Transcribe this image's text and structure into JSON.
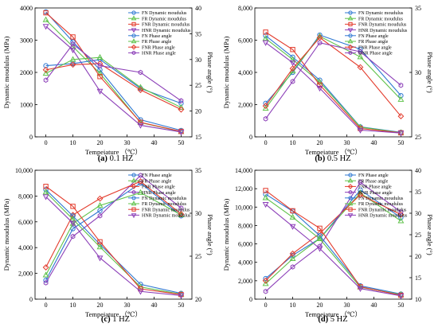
{
  "chart_data": [
    {
      "type": "line",
      "caption_letter": "(a)",
      "caption_text": " 0.1 HZ",
      "xlabel": "Tempeiature （℃）",
      "ylabel_left": "Dynamic moudulus (MPa)",
      "ylabel_right": "Phase angle (°)",
      "x": [
        0,
        10,
        20,
        35,
        50
      ],
      "x_ticks": [
        0,
        10,
        20,
        30,
        40,
        50
      ],
      "xlim": [
        -4,
        54
      ],
      "ylim_left": [
        0,
        4000
      ],
      "yticks_left": [
        0,
        1000,
        2000,
        3000,
        4000
      ],
      "yticks_left_labels": [
        "0",
        "1000",
        "2000",
        "3000",
        "4000"
      ],
      "ylim_right": [
        15,
        40
      ],
      "yticks_right": [
        15,
        20,
        25,
        30,
        35,
        40
      ],
      "legend": [
        "FN Dynamic moudulus",
        "FR Dynamic moudulus",
        "FNR Dynamic moudulus",
        "HNR Dynamic moudulus",
        "FN Phase angle",
        "FR Phase angle",
        "FNR Phase angle",
        "HNR Phase angle"
      ],
      "series": [
        {
          "name": "FN Dynamic moudulus",
          "axis": "left",
          "color": "#2f78d2",
          "marker": "circle",
          "values": [
            3880,
            2950,
            2080,
            530,
            200
          ]
        },
        {
          "name": "FR Dynamic moudulus",
          "axis": "left",
          "color": "#5fc24a",
          "marker": "triangle",
          "values": [
            3630,
            2800,
            1970,
            440,
            160
          ]
        },
        {
          "name": "FNR Dynamic moudulus",
          "axis": "left",
          "color": "#e33b2c",
          "marker": "square",
          "values": [
            3850,
            3100,
            1870,
            450,
            170
          ]
        },
        {
          "name": "HNR Dynamic moudulus",
          "axis": "left",
          "color": "#8c3fb8",
          "marker": "triangle-down",
          "values": [
            3430,
            2700,
            1420,
            360,
            150
          ]
        },
        {
          "name": "FN Phase angle",
          "axis": "right",
          "color": "#2f78d2",
          "marker": "circle",
          "values": [
            28.8,
            29.2,
            30.0,
            24.4,
            21.5
          ]
        },
        {
          "name": "FR Phase angle",
          "axis": "right",
          "color": "#5fc24a",
          "marker": "triangle",
          "values": [
            27.3,
            30.0,
            30.4,
            24.6,
            20.7
          ]
        },
        {
          "name": "FNR Phase angle",
          "axis": "right",
          "color": "#e33b2c",
          "marker": "diamond",
          "values": [
            28.0,
            29.0,
            29.2,
            24.1,
            20.3
          ]
        },
        {
          "name": "HNR Phase angle",
          "axis": "right",
          "color": "#8c3fb8",
          "marker": "hexagon",
          "values": [
            26.0,
            33.0,
            28.8,
            27.5,
            22.0
          ]
        }
      ]
    },
    {
      "type": "line",
      "caption_letter": "(b)",
      "caption_text": " 0.5 HZ",
      "xlabel": "Tempeiature （℃）",
      "ylabel_left": "Dynamic moudulus (MPa)",
      "ylabel_right": "Phase angle (°)",
      "x": [
        0,
        10,
        20,
        35,
        50
      ],
      "x_ticks": [
        0,
        10,
        20,
        30,
        40,
        50
      ],
      "xlim": [
        -4,
        54
      ],
      "ylim_left": [
        0,
        8000
      ],
      "yticks_left": [
        0,
        2000,
        4000,
        6000,
        8000
      ],
      "yticks_left_labels": [
        "0",
        "2,000",
        "4,000",
        "6,000",
        "8,000"
      ],
      "ylim_right": [
        25,
        35
      ],
      "yticks_right": [
        25,
        30,
        35
      ],
      "legend": [
        "FN Dynamic moudulus",
        "FR Dynamic moudulus",
        "FNR Dynamic moudulus",
        "HNR Dynamic moudulus",
        "FN Phase angle",
        "FR Phase angle",
        "FNR Phase angle",
        "HNR Phase angle"
      ],
      "series": [
        {
          "name": "FN Dynamic moudulus",
          "axis": "left",
          "color": "#2f78d2",
          "marker": "circle",
          "values": [
            6280,
            4950,
            3520,
            620,
            280
          ]
        },
        {
          "name": "FR Dynamic moudulus",
          "axis": "left",
          "color": "#5fc24a",
          "marker": "triangle",
          "values": [
            6100,
            4800,
            3400,
            600,
            260
          ]
        },
        {
          "name": "FNR Dynamic moudulus",
          "axis": "left",
          "color": "#e33b2c",
          "marker": "square",
          "values": [
            6500,
            5420,
            3220,
            520,
            250
          ]
        },
        {
          "name": "HNR Dynamic moudulus",
          "axis": "left",
          "color": "#8c3fb8",
          "marker": "triangle-down",
          "values": [
            5850,
            4600,
            3020,
            420,
            240
          ]
        },
        {
          "name": "FN Phase angle",
          "axis": "right",
          "color": "#2f78d2",
          "marker": "circle",
          "values": [
            27.6,
            30.0,
            32.9,
            31.8,
            28.2
          ]
        },
        {
          "name": "FR Phase angle",
          "axis": "right",
          "color": "#5fc24a",
          "marker": "triangle",
          "values": [
            27.2,
            30.1,
            32.8,
            31.2,
            27.9
          ]
        },
        {
          "name": "FNR Phase angle",
          "axis": "right",
          "color": "#e33b2c",
          "marker": "diamond",
          "values": [
            27.4,
            30.3,
            32.7,
            30.4,
            26.6
          ]
        },
        {
          "name": "HNR Phase angle",
          "axis": "right",
          "color": "#8c3fb8",
          "marker": "hexagon",
          "values": [
            26.4,
            29.3,
            32.3,
            31.6,
            29.0
          ]
        }
      ]
    },
    {
      "type": "line",
      "caption_letter": "(c)",
      "caption_text": " 1 HZ",
      "xlabel": "Tempeiature （℃）",
      "ylabel_left": "Dynamic moudulus (MPa)",
      "ylabel_right": "Phase angle (°)",
      "x": [
        0,
        10,
        20,
        35,
        50
      ],
      "x_ticks": [
        0,
        10,
        20,
        30,
        40,
        50
      ],
      "xlim": [
        -4,
        54
      ],
      "ylim_left": [
        0,
        10000
      ],
      "yticks_left": [
        0,
        2000,
        4000,
        6000,
        8000,
        10000
      ],
      "yticks_left_labels": [
        "0",
        "2,000",
        "4,000",
        "6,000",
        "8,000",
        "10,000"
      ],
      "ylim_right": [
        20,
        35
      ],
      "yticks_right": [
        20,
        25,
        30,
        35
      ],
      "legend": [
        "FN Phase angle",
        "FR Phase angle",
        "FNR Phase angle",
        "HNR Phase angle",
        "FN Dynamic moudulus",
        "FR Dynamic moudulus",
        "FNR Dynamic moudulus",
        "HNR Dynamic moudulus"
      ],
      "series": [
        {
          "name": "FN Phase angle",
          "axis": "right",
          "color": "#2f78d2",
          "marker": "circle",
          "values": [
            22.2,
            28.2,
            30.3,
            33.5,
            29.7
          ]
        },
        {
          "name": "FR Phase angle",
          "axis": "right",
          "color": "#5fc24a",
          "marker": "triangle",
          "values": [
            22.8,
            28.8,
            30.9,
            32.4,
            29.8
          ]
        },
        {
          "name": "FNR Phase angle",
          "axis": "right",
          "color": "#e33b2c",
          "marker": "diamond",
          "values": [
            23.7,
            29.8,
            31.7,
            33.7,
            29.9
          ]
        },
        {
          "name": "HNR Phase angle",
          "axis": "right",
          "color": "#8c3fb8",
          "marker": "hexagon",
          "values": [
            21.9,
            27.3,
            29.7,
            34.4,
            30.6
          ]
        },
        {
          "name": "FN Dynamic moudulus",
          "axis": "left",
          "color": "#2f78d2",
          "marker": "circle",
          "values": [
            8500,
            6450,
            4250,
            1150,
            450
          ]
        },
        {
          "name": "FR Dynamic moudulus",
          "axis": "left",
          "color": "#5fc24a",
          "marker": "triangle",
          "values": [
            8300,
            6200,
            4050,
            950,
            380
          ]
        },
        {
          "name": "FNR Dynamic moudulus",
          "axis": "left",
          "color": "#e33b2c",
          "marker": "square",
          "values": [
            8750,
            7200,
            4450,
            800,
            360
          ]
        },
        {
          "name": "HNR Dynamic moudulus",
          "axis": "left",
          "color": "#8c3fb8",
          "marker": "triangle-down",
          "values": [
            7950,
            5900,
            3200,
            600,
            280
          ]
        }
      ]
    },
    {
      "type": "line",
      "caption_letter": "(d)",
      "caption_text": " 5 HZ",
      "xlabel": "Tempeiature （℃）",
      "ylabel_left": "Dynamic moudulus (MPa)",
      "ylabel_right": "Phase angle (°)",
      "x": [
        0,
        10,
        20,
        35,
        50
      ],
      "x_ticks": [
        0,
        10,
        20,
        30,
        40,
        50
      ],
      "xlim": [
        -4,
        54
      ],
      "ylim_left": [
        0,
        14000
      ],
      "yticks_left": [
        0,
        2000,
        4000,
        6000,
        8000,
        10000,
        12000,
        14000
      ],
      "yticks_left_labels": [
        "0",
        "2,000",
        "4,000",
        "6,000",
        "8,000",
        "10,000",
        "12,000",
        "14,000"
      ],
      "ylim_right": [
        10,
        40
      ],
      "yticks_right": [
        10,
        15,
        20,
        25,
        30,
        35,
        40
      ],
      "legend": [
        "FN Phase angle",
        "FR Phase angle",
        "FNR Phase angle",
        "HNR Phase angle",
        "FN Dynamic moudulus",
        "FR Dynamic moudulus",
        "FNR Dynamic moudulus",
        "HNR Dynamic moudulus"
      ],
      "series": [
        {
          "name": "FN Phase angle",
          "axis": "right",
          "color": "#2f78d2",
          "marker": "circle",
          "values": [
            14.8,
            20.2,
            24.1,
            35.4,
            29.0
          ]
        },
        {
          "name": "FR Phase angle",
          "axis": "right",
          "color": "#5fc24a",
          "marker": "triangle",
          "values": [
            13.6,
            19.4,
            24.1,
            34.7,
            28.2
          ]
        },
        {
          "name": "FNR Phase angle",
          "axis": "right",
          "color": "#e33b2c",
          "marker": "diamond",
          "values": [
            14.3,
            20.6,
            25.3,
            34.3,
            29.7
          ]
        },
        {
          "name": "HNR Phase angle",
          "axis": "right",
          "color": "#8c3fb8",
          "marker": "hexagon",
          "values": [
            11.8,
            17.5,
            22.3,
            37.2,
            30.3
          ]
        },
        {
          "name": "FN Dynamic moudulus",
          "axis": "left",
          "color": "#2f78d2",
          "marker": "circle",
          "values": [
            11400,
            9550,
            6900,
            1450,
            560
          ]
        },
        {
          "name": "FR Dynamic moudulus",
          "axis": "left",
          "color": "#5fc24a",
          "marker": "triangle",
          "values": [
            11000,
            8900,
            6550,
            1300,
            490
          ]
        },
        {
          "name": "FNR Dynamic moudulus",
          "axis": "left",
          "color": "#e33b2c",
          "marker": "square",
          "values": [
            11800,
            9600,
            7700,
            1350,
            420
          ]
        },
        {
          "name": "HNR Dynamic moudulus",
          "axis": "left",
          "color": "#8c3fb8",
          "marker": "triangle-down",
          "values": [
            10300,
            7900,
            5500,
            1150,
            360
          ]
        }
      ]
    }
  ]
}
